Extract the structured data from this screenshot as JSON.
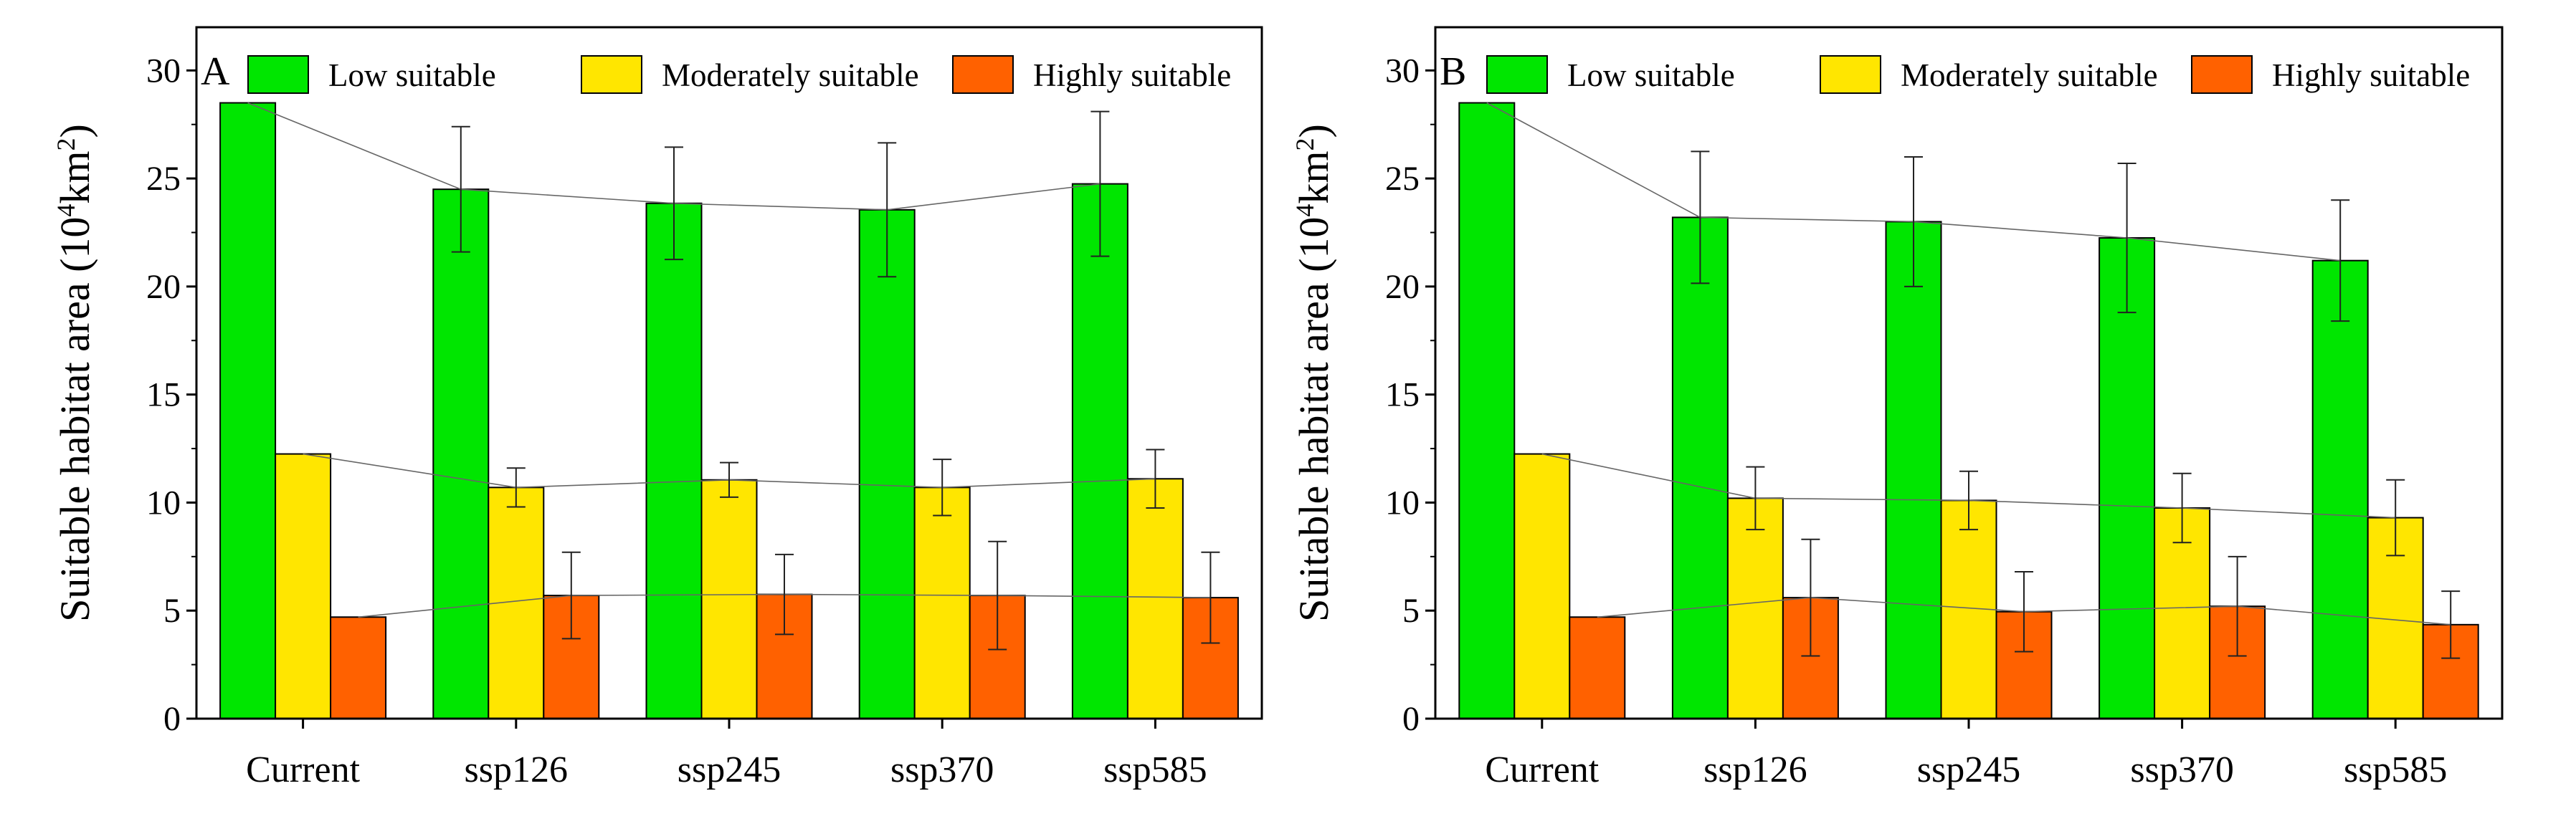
{
  "chart_data": [
    {
      "type": "bar",
      "panel_label": "A",
      "categories": [
        "Current",
        "ssp126",
        "ssp245",
        "ssp370",
        "ssp585"
      ],
      "ylabel": "Suitable habitat area (10⁴km²)",
      "ylabel_parts": [
        "Suitable habitat area (10",
        "4",
        "km",
        "2",
        ")"
      ],
      "ylim": [
        0,
        32
      ],
      "yticks": [
        0,
        5,
        10,
        15,
        20,
        25,
        30
      ],
      "legend_position": "top",
      "colors": {
        "Low suitable": "#00e600",
        "Moderately suitable": "#ffe600",
        "Highly suitable": "#ff6100"
      },
      "series": [
        {
          "name": "Low suitable",
          "values": [
            28.5,
            24.5,
            23.85,
            23.55,
            24.75
          ],
          "errors": [
            null,
            2.9,
            2.6,
            3.1,
            3.35
          ]
        },
        {
          "name": "Moderately suitable",
          "values": [
            12.25,
            10.7,
            11.05,
            10.7,
            11.1
          ],
          "errors": [
            null,
            0.9,
            0.8,
            1.3,
            1.35
          ]
        },
        {
          "name": "Highly suitable",
          "values": [
            4.7,
            5.7,
            5.75,
            5.7,
            5.6
          ],
          "errors": [
            null,
            2.0,
            1.85,
            2.5,
            2.1
          ]
        }
      ]
    },
    {
      "type": "bar",
      "panel_label": "B",
      "categories": [
        "Current",
        "ssp126",
        "ssp245",
        "ssp370",
        "ssp585"
      ],
      "ylabel": "Suitable habitat area (10⁴km²)",
      "ylabel_parts": [
        "Suitable habitat area (10",
        "4",
        "km",
        "2",
        ")"
      ],
      "ylim": [
        0,
        32
      ],
      "yticks": [
        0,
        5,
        10,
        15,
        20,
        25,
        30
      ],
      "legend_position": "top",
      "colors": {
        "Low suitable": "#00e600",
        "Moderately suitable": "#ffe600",
        "Highly suitable": "#ff6100"
      },
      "series": [
        {
          "name": "Low suitable",
          "values": [
            28.5,
            23.2,
            23.0,
            22.25,
            21.2
          ],
          "errors": [
            null,
            3.05,
            3.0,
            3.45,
            2.8
          ]
        },
        {
          "name": "Moderately suitable",
          "values": [
            12.25,
            10.2,
            10.1,
            9.75,
            9.3
          ],
          "errors": [
            null,
            1.45,
            1.35,
            1.6,
            1.75
          ]
        },
        {
          "name": "Highly suitable",
          "values": [
            4.7,
            5.6,
            4.95,
            5.2,
            4.35
          ],
          "errors": [
            null,
            2.7,
            1.85,
            2.3,
            1.55
          ]
        }
      ]
    }
  ]
}
